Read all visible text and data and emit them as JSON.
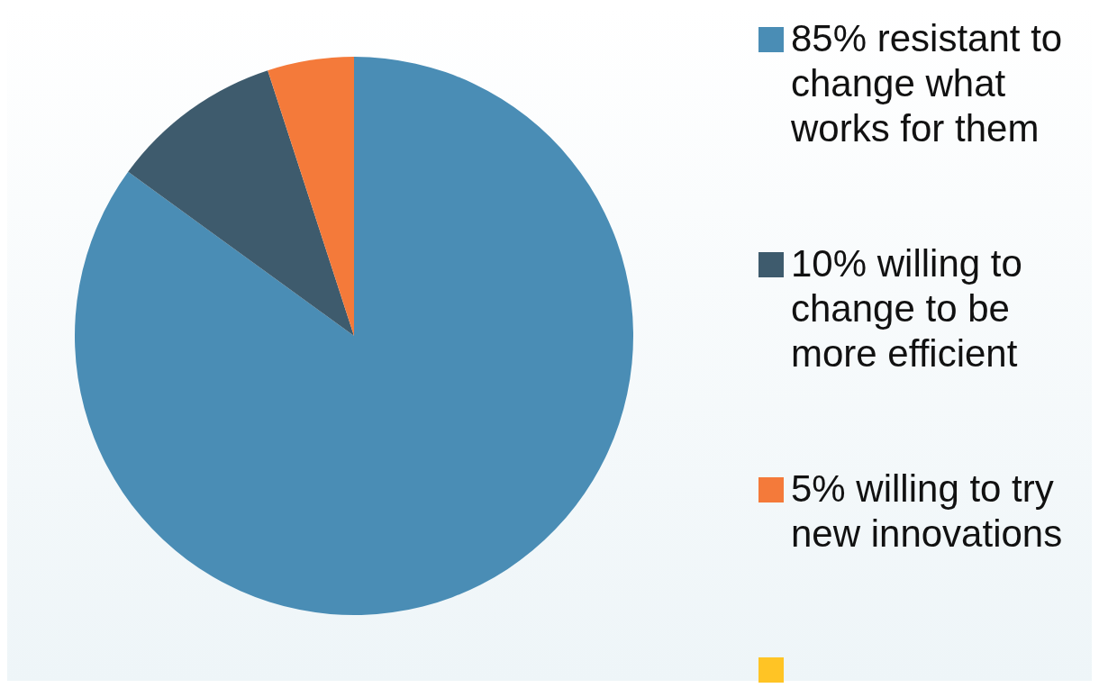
{
  "chart_data": {
    "type": "pie",
    "categories": [
      "85% resistant to change what works for them",
      "10% willing to change to be more efficient",
      "5% willing to try new innovations",
      null
    ],
    "values": [
      85,
      10,
      5,
      0
    ],
    "colors": [
      "#4a8db5",
      "#3e5b6d",
      "#f47a3a",
      "#ffc425"
    ],
    "legend": "right"
  }
}
